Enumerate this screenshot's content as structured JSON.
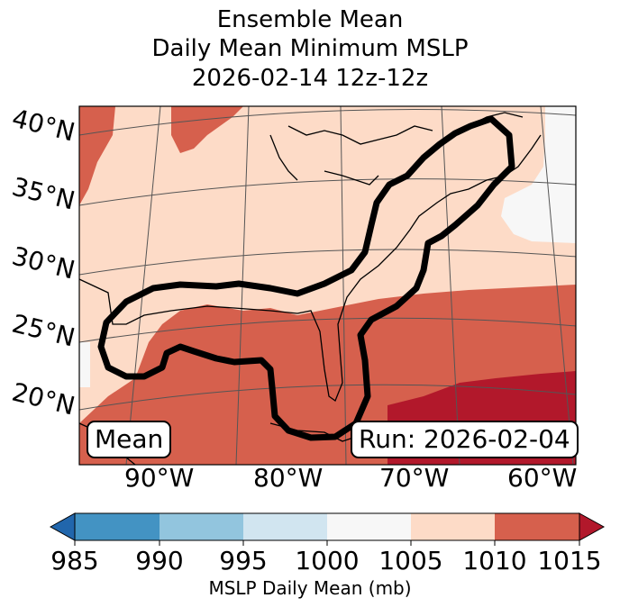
{
  "title": {
    "line1": "Ensemble Mean",
    "line2": "Daily Mean Minimum MSLP",
    "line3": "2026-02-14 12z-12z"
  },
  "lat_labels": [
    "40°N",
    "35°N",
    "30°N",
    "25°N",
    "20°N"
  ],
  "lon_labels": [
    "90°W",
    "80°W",
    "70°W",
    "60°W"
  ],
  "annotations": {
    "left": "Mean",
    "right": "Run: 2026-02-04"
  },
  "colorbar": {
    "label": "MSLP Daily Mean (mb)",
    "ticks": [
      "985",
      "990",
      "995",
      "1000",
      "1005",
      "1010",
      "1015"
    ],
    "bins": [
      {
        "range": "<985",
        "color": "#2166ac"
      },
      {
        "range": "985-990",
        "color": "#4393c3"
      },
      {
        "range": "990-995",
        "color": "#92c5de"
      },
      {
        "range": "995-1000",
        "color": "#d1e5f0"
      },
      {
        "range": "1000-1005",
        "color": "#f7f7f7"
      },
      {
        "range": "1005-1010",
        "color": "#fddbc7"
      },
      {
        "range": "1010-1015",
        "color": "#d6604d"
      },
      {
        "range": ">1015",
        "color": "#b2182b"
      }
    ]
  }
}
